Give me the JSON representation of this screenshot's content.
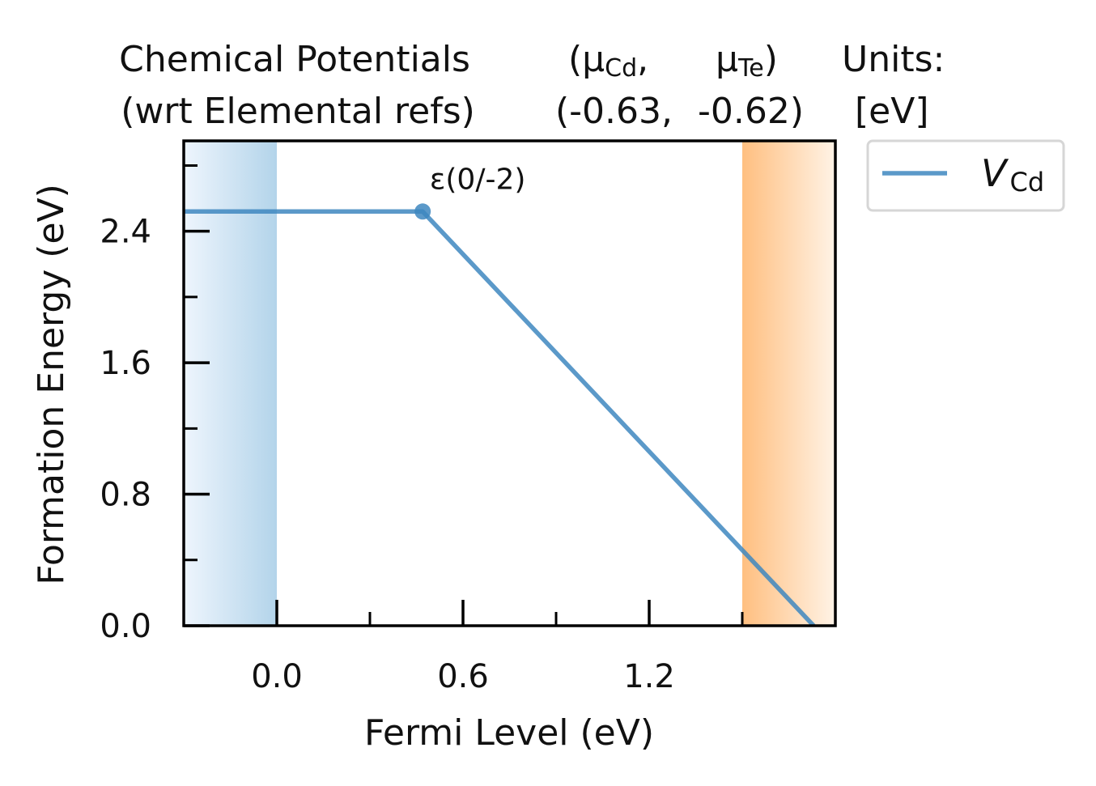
{
  "header": {
    "row1": {
      "left": "Chemical Potentials",
      "mid1": "(μ",
      "mid1_sub": "Cd",
      "mid1_tail": ",",
      "mid2": "μ",
      "mid2_sub": "Te",
      "mid2_tail": ")",
      "right": "Units:"
    },
    "row2": {
      "left": "(wrt Elemental refs)",
      "mid1": "(-0.63,",
      "mid2": "-0.62)",
      "right": "[eV]"
    }
  },
  "chart_data": {
    "type": "line",
    "xlabel": "Fermi Level (eV)",
    "ylabel": "Formation Energy (eV)",
    "xlim": [
      -0.3,
      1.8
    ],
    "ylim": [
      0.0,
      2.95
    ],
    "x_ticks": [
      0.0,
      0.6,
      1.2
    ],
    "x_tick_labels": [
      "0.0",
      "0.6",
      "1.2"
    ],
    "x_minor_ticks": [
      0.3,
      0.9,
      1.5
    ],
    "y_ticks": [
      0.0,
      0.8,
      1.6,
      2.4
    ],
    "y_tick_labels": [
      "0.0",
      "0.8",
      "1.6",
      "2.4"
    ],
    "y_minor_ticks": [
      0.4,
      1.2,
      2.0,
      2.8
    ],
    "vbm_region": {
      "from": -0.3,
      "to": 0.0,
      "color": "#b3d4ea"
    },
    "cbm_region": {
      "from": 1.5,
      "to": 1.8,
      "color": "#ffbf80"
    },
    "series": [
      {
        "name": "V",
        "name_sub": "Cd",
        "color": "#3e87c0",
        "points": [
          [
            -0.3,
            2.52
          ],
          [
            0.47,
            2.52
          ],
          [
            1.73,
            0.0
          ]
        ]
      }
    ],
    "transition_levels": [
      {
        "label": "ε(0/-2)",
        "x": 0.47,
        "y": 2.52
      }
    ],
    "legend": {
      "placement": "outside-right-top"
    },
    "grid": false
  }
}
